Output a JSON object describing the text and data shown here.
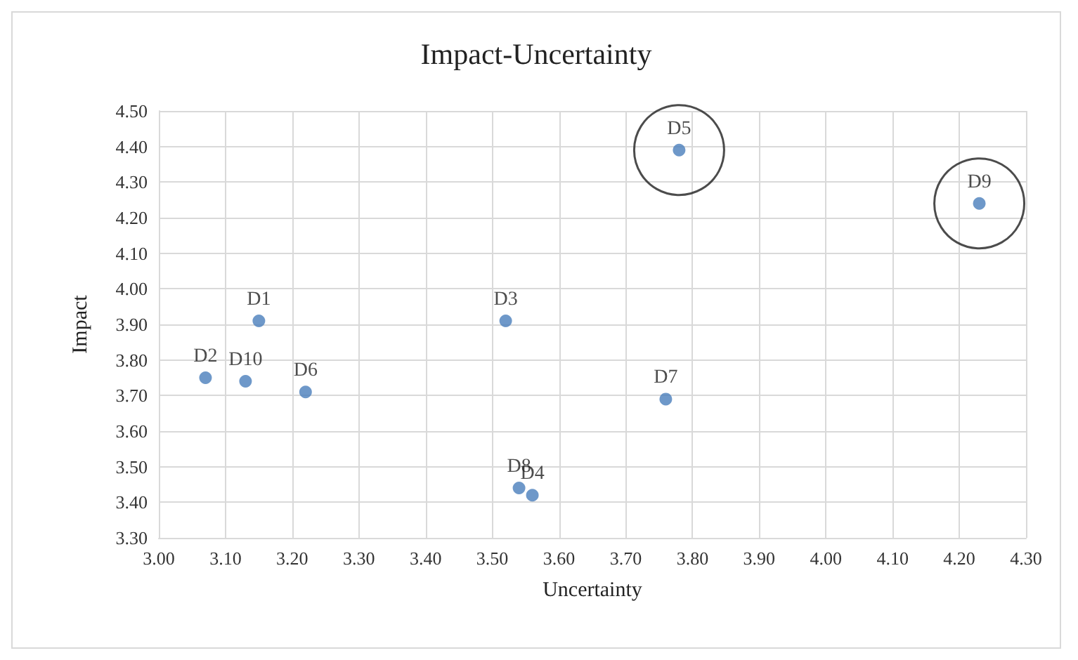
{
  "chart_data": {
    "type": "scatter",
    "title": "Impact-Uncertainty",
    "xlabel": "Uncertainty",
    "ylabel": "Impact",
    "series": [
      {
        "color": "#4a7ebb",
        "x": [
          3.15,
          3.07,
          3.52,
          3.56,
          3.78,
          3.22,
          3.76,
          3.54,
          4.23,
          3.13
        ],
        "values": [
          3.91,
          3.75,
          3.91,
          3.42,
          4.39,
          3.71,
          3.69,
          3.44,
          4.24,
          3.74
        ]
      },
      {
        "type": "scatter",
        "marker": "circle",
        "color": "#1f1f1f",
        "x": [
          3.78,
          4.23
        ],
        "values": [
          4.39,
          4.24
        ]
      }
    ],
    "annotations": [
      {
        "text": "D1",
        "x": 3.15,
        "y": 3.91
      },
      {
        "text": "D2",
        "x": 3.07,
        "y": 3.75
      },
      {
        "text": "D3",
        "x": 3.52,
        "y": 3.91
      },
      {
        "text": "D4",
        "x": 3.56,
        "y": 3.42
      },
      {
        "text": "D5",
        "x": 3.78,
        "y": 4.39
      },
      {
        "text": "D6",
        "x": 3.22,
        "y": 3.71
      },
      {
        "text": "D7",
        "x": 3.76,
        "y": 3.69
      },
      {
        "text": "D8",
        "x": 3.54,
        "y": 3.44
      },
      {
        "text": "D9",
        "x": 4.23,
        "y": 4.24
      },
      {
        "text": "D10",
        "x": 3.13,
        "y": 3.74
      }
    ],
    "xlim": [
      3.0,
      4.3
    ],
    "xticks": [
      {
        "value": 3.0,
        "label": "3.00"
      },
      {
        "value": 3.1,
        "label": "3.10"
      },
      {
        "value": 3.2,
        "label": "3.20"
      },
      {
        "value": 3.3,
        "label": "3.30"
      },
      {
        "value": 3.4,
        "label": "3.40"
      },
      {
        "value": 3.5,
        "label": "3.50"
      },
      {
        "value": 3.6,
        "label": "3.60"
      },
      {
        "value": 3.7,
        "label": "3.70"
      },
      {
        "value": 3.8,
        "label": "3.80"
      },
      {
        "value": 3.9,
        "label": "3.90"
      },
      {
        "value": 4.0,
        "label": "4.00"
      },
      {
        "value": 4.1,
        "label": "4.10"
      },
      {
        "value": 4.2,
        "label": "4.20"
      },
      {
        "value": 4.3,
        "label": "4.30"
      }
    ],
    "ylim": [
      3.3,
      4.5
    ],
    "yticks": [
      {
        "value": 3.3,
        "label": "3.30"
      },
      {
        "value": 3.4,
        "label": "3.40"
      },
      {
        "value": 3.5,
        "label": "3.50"
      },
      {
        "value": 3.6,
        "label": "3.60"
      },
      {
        "value": 3.7,
        "label": "3.70"
      },
      {
        "value": 3.8,
        "label": "3.80"
      },
      {
        "value": 3.9,
        "label": "3.90"
      },
      {
        "value": 4.0,
        "label": "4.00"
      },
      {
        "value": 4.1,
        "label": "4.10"
      },
      {
        "value": 4.2,
        "label": "4.20"
      },
      {
        "value": 4.3,
        "label": "4.30"
      },
      {
        "value": 4.4,
        "label": "4.40"
      },
      {
        "value": 4.5,
        "label": "4.50"
      }
    ],
    "grid": true,
    "marker": "circle"
  }
}
